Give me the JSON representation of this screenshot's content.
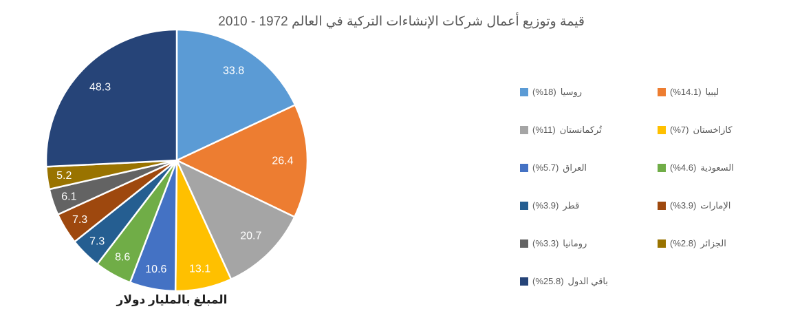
{
  "chart_data": {
    "type": "pie",
    "title": "قيمة وتوزيع أعمال شركات الإنشاءات التركية في العالم 1972 - 2010",
    "bottom_label": "المبلغ بالمليار دولار",
    "start_angle_deg": 0,
    "direction": "clockwise",
    "legend": {
      "position": "right",
      "columns": 2,
      "pct_prefix": "(%",
      "pct_suffix": ")"
    },
    "colors": {
      "title_text": "#595959",
      "legend_text": "#595959",
      "data_label_text": "#FFFFFF",
      "bottom_label_text": "#1F1F1F",
      "slice_border": "#FFFFFF"
    },
    "slices": [
      {
        "name": "روسيا",
        "value": 33.8,
        "pct": "18",
        "color": "#5B9BD5"
      },
      {
        "name": "ليبيا",
        "value": 26.4,
        "pct": "14.1",
        "color": "#ED7D31"
      },
      {
        "name": "تُركمانستان",
        "value": 20.7,
        "pct": "11",
        "color": "#A5A5A5"
      },
      {
        "name": "كازاخستان",
        "value": 13.1,
        "pct": "7",
        "color": "#FFC000"
      },
      {
        "name": "العراق",
        "value": 10.6,
        "pct": "5.7",
        "color": "#4472C4"
      },
      {
        "name": "السعودية",
        "value": 8.6,
        "pct": "4.6",
        "color": "#70AD47"
      },
      {
        "name": "قطر",
        "value": 7.3,
        "pct": "3.9",
        "color": "#255E91"
      },
      {
        "name": "الإمارات",
        "value": 7.3,
        "pct": "3.9",
        "color": "#9E480E"
      },
      {
        "name": "رومانيا",
        "value": 6.1,
        "pct": "3.3",
        "color": "#636363"
      },
      {
        "name": "الجزائر",
        "value": 5.2,
        "pct": "2.8",
        "color": "#997300"
      },
      {
        "name": "باقي الدول",
        "value": 48.3,
        "pct": "25.8",
        "color": "#264478"
      }
    ]
  }
}
